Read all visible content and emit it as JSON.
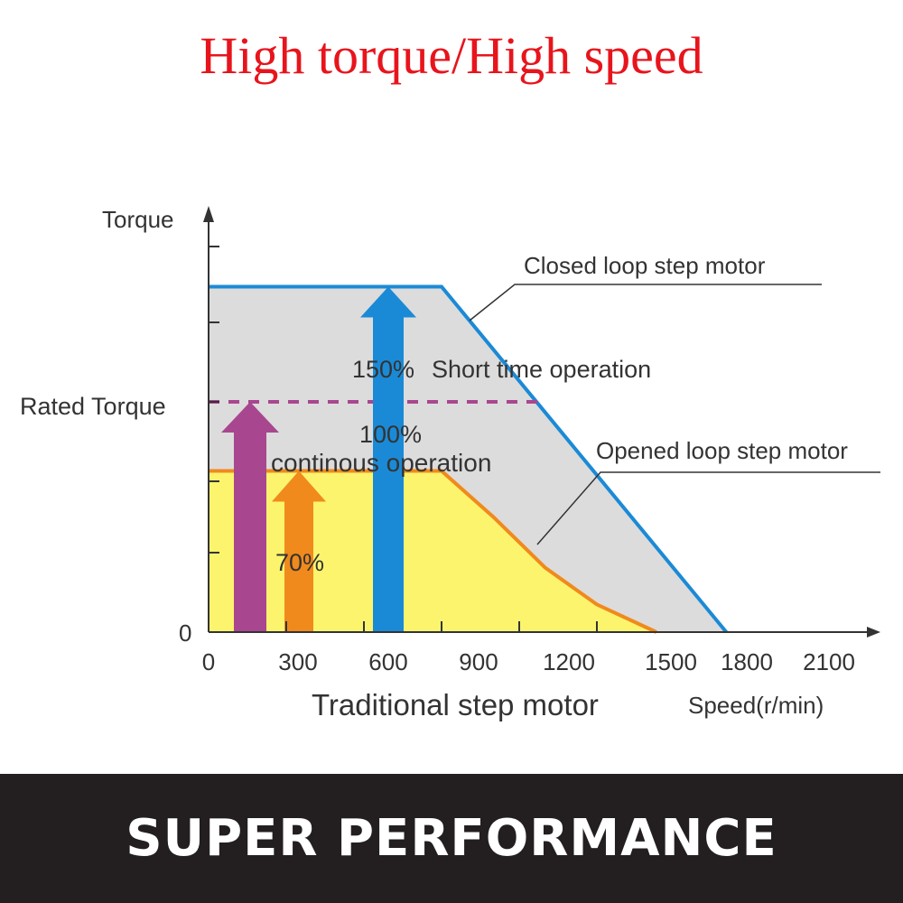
{
  "title": "High torque/High speed",
  "banner": "SUPER PERFORMANCE",
  "chart_data": {
    "type": "area",
    "ylabel": "Torque",
    "xlabel": "Traditional step motor",
    "xunit_label": "Speed(r/min)",
    "y_tick_label": "Rated Torque",
    "y_zero_label": "0",
    "x_ticks": [
      "0",
      "300",
      "600",
      "900",
      "1200",
      "1500",
      "1800",
      "2100"
    ],
    "xlim": [
      0,
      2100
    ],
    "ylim_percent_of_rated": [
      0,
      180
    ],
    "series": [
      {
        "name": "Closed loop step motor",
        "color": "#1b8ad6",
        "fill": "#dcdcdc",
        "points": [
          [
            0,
            150
          ],
          [
            900,
            150
          ],
          [
            2000,
            0
          ]
        ]
      },
      {
        "name": "Opened loop step motor",
        "color": "#f08a1c",
        "fill": "#fdf46e",
        "points": [
          [
            0,
            70
          ],
          [
            900,
            70
          ],
          [
            1100,
            50
          ],
          [
            1300,
            28
          ],
          [
            1500,
            12
          ],
          [
            1730,
            0
          ]
        ]
      }
    ],
    "rated_line": {
      "value": 100,
      "color": "#a8478f",
      "x_end": 1270
    },
    "arrows": [
      {
        "label": "100%",
        "sublabel": "continous operation",
        "value": 100,
        "x": 100,
        "color": "#a8478f"
      },
      {
        "label": "70%",
        "value": 70,
        "x": 340,
        "color": "#f08a1c"
      },
      {
        "label": "150%",
        "sublabel": "Short  time operation",
        "value": 150,
        "x": 640,
        "color": "#1b8ad6"
      }
    ]
  }
}
